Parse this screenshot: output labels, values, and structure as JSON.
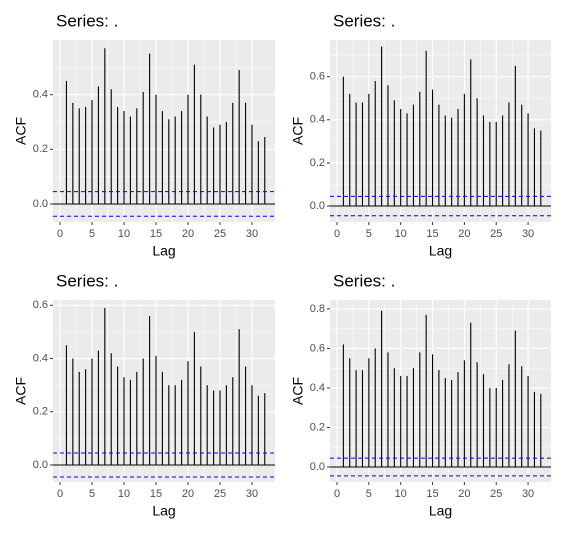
{
  "chart_data": [
    {
      "type": "bar",
      "title": "Series: .",
      "xlabel": "Lag",
      "ylabel": "ACF",
      "x": [
        1,
        2,
        3,
        4,
        5,
        6,
        7,
        8,
        9,
        10,
        11,
        12,
        13,
        14,
        15,
        16,
        17,
        18,
        19,
        20,
        21,
        22,
        23,
        24,
        25,
        26,
        27,
        28,
        29,
        30,
        31,
        32
      ],
      "values": [
        0.45,
        0.37,
        0.35,
        0.355,
        0.38,
        0.43,
        0.57,
        0.42,
        0.355,
        0.34,
        0.32,
        0.35,
        0.41,
        0.55,
        0.4,
        0.34,
        0.31,
        0.32,
        0.34,
        0.4,
        0.51,
        0.4,
        0.32,
        0.28,
        0.29,
        0.3,
        0.37,
        0.49,
        0.37,
        0.29,
        0.23,
        0.245
      ],
      "color": "#000000",
      "ci": 0.045,
      "ci_color": "#0000ff",
      "xlim": [
        -1.1,
        33.6
      ],
      "ylim": [
        -0.066,
        0.6
      ],
      "xticks": [
        0,
        5,
        10,
        15,
        20,
        25,
        30
      ],
      "yticks": [
        {
          "value": 0,
          "label": "0.0"
        },
        0.2,
        0.4
      ],
      "grid": true
    },
    {
      "type": "bar",
      "title": "Series: .",
      "xlabel": "Lag",
      "ylabel": "ACF",
      "x": [
        1,
        2,
        3,
        4,
        5,
        6,
        7,
        8,
        9,
        10,
        11,
        12,
        13,
        14,
        15,
        16,
        17,
        18,
        19,
        20,
        21,
        22,
        23,
        24,
        25,
        26,
        27,
        28,
        29,
        30,
        31,
        32
      ],
      "values": [
        0.6,
        0.52,
        0.48,
        0.48,
        0.52,
        0.58,
        0.74,
        0.56,
        0.49,
        0.45,
        0.43,
        0.47,
        0.53,
        0.72,
        0.54,
        0.47,
        0.42,
        0.41,
        0.45,
        0.52,
        0.68,
        0.5,
        0.42,
        0.39,
        0.39,
        0.42,
        0.48,
        0.65,
        0.47,
        0.43,
        0.36,
        0.35
      ],
      "color": "#000000",
      "ci": 0.045,
      "ci_color": "#0000ff",
      "xlim": [
        -1.1,
        33.6
      ],
      "ylim": [
        -0.074,
        0.77
      ],
      "xticks": [
        0,
        5,
        10,
        15,
        20,
        25,
        30
      ],
      "yticks": [
        {
          "value": 0,
          "label": "0.0"
        },
        0.2,
        0.4,
        0.6
      ],
      "grid": true
    },
    {
      "type": "bar",
      "title": "Series: .",
      "xlabel": "Lag",
      "ylabel": "ACF",
      "x": [
        1,
        2,
        3,
        4,
        5,
        6,
        7,
        8,
        9,
        10,
        11,
        12,
        13,
        14,
        15,
        16,
        17,
        18,
        19,
        20,
        21,
        22,
        23,
        24,
        25,
        26,
        27,
        28,
        29,
        30,
        31,
        32
      ],
      "values": [
        0.45,
        0.4,
        0.35,
        0.36,
        0.4,
        0.43,
        0.59,
        0.42,
        0.37,
        0.33,
        0.32,
        0.35,
        0.4,
        0.56,
        0.41,
        0.35,
        0.3,
        0.3,
        0.32,
        0.39,
        0.5,
        0.37,
        0.3,
        0.28,
        0.28,
        0.3,
        0.33,
        0.51,
        0.37,
        0.3,
        0.26,
        0.27
      ],
      "color": "#000000",
      "ci": 0.045,
      "ci_color": "#0000ff",
      "xlim": [
        -1.1,
        33.6
      ],
      "ylim": [
        -0.064,
        0.62
      ],
      "xticks": [
        0,
        5,
        10,
        15,
        20,
        25,
        30
      ],
      "yticks": [
        {
          "value": 0,
          "label": "0.0"
        },
        0.2,
        0.4,
        0.6
      ],
      "grid": true
    },
    {
      "type": "bar",
      "title": "Series: .",
      "xlabel": "Lag",
      "ylabel": "ACF",
      "x": [
        1,
        2,
        3,
        4,
        5,
        6,
        7,
        8,
        9,
        10,
        11,
        12,
        13,
        14,
        15,
        16,
        17,
        18,
        19,
        20,
        21,
        22,
        23,
        24,
        25,
        26,
        27,
        28,
        29,
        30,
        31,
        32
      ],
      "values": [
        0.62,
        0.55,
        0.49,
        0.49,
        0.55,
        0.6,
        0.79,
        0.58,
        0.5,
        0.46,
        0.46,
        0.5,
        0.58,
        0.77,
        0.57,
        0.49,
        0.45,
        0.44,
        0.48,
        0.54,
        0.73,
        0.53,
        0.47,
        0.4,
        0.4,
        0.44,
        0.52,
        0.69,
        0.51,
        0.46,
        0.38,
        0.37
      ],
      "color": "#000000",
      "ci": 0.045,
      "ci_color": "#0000ff",
      "xlim": [
        -1.1,
        33.6
      ],
      "ylim": [
        -0.076,
        0.845
      ],
      "xticks": [
        0,
        5,
        10,
        15,
        20,
        25,
        30
      ],
      "yticks": [
        {
          "value": 0,
          "label": "0.0"
        },
        0.2,
        0.4,
        0.6,
        0.8
      ],
      "grid": true
    }
  ]
}
